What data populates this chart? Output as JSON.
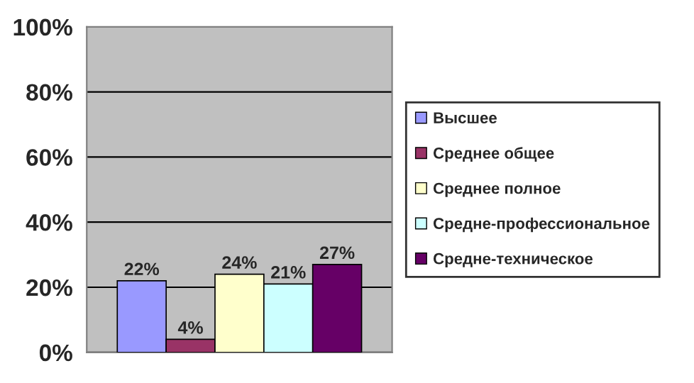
{
  "chart_data": {
    "type": "bar",
    "categories": [
      null
    ],
    "series": [
      {
        "name": "Высшее",
        "color": "#9999ff",
        "values": [
          22
        ],
        "value_labels": [
          "22%"
        ]
      },
      {
        "name": "Среднее общее",
        "color": "#993366",
        "values": [
          4
        ],
        "value_labels": [
          "4%"
        ]
      },
      {
        "name": "Среднее полное",
        "color": "#ffffcc",
        "values": [
          24
        ],
        "value_labels": [
          "24%"
        ]
      },
      {
        "name": "Средне-профессиональное",
        "color": "#ccffff",
        "values": [
          21
        ],
        "value_labels": [
          "21%"
        ]
      },
      {
        "name": "Средне-техническое",
        "color": "#660066",
        "values": [
          27
        ],
        "value_labels": [
          "27%"
        ]
      }
    ],
    "ylim": [
      0,
      100
    ],
    "yticks": [
      {
        "value": 0,
        "label": "0%"
      },
      {
        "value": 20,
        "label": "20%"
      },
      {
        "value": 40,
        "label": "40%"
      },
      {
        "value": 60,
        "label": "60%"
      },
      {
        "value": 80,
        "label": "80%"
      },
      {
        "value": 100,
        "label": "100%"
      }
    ],
    "grid": "y",
    "legend": "right"
  }
}
